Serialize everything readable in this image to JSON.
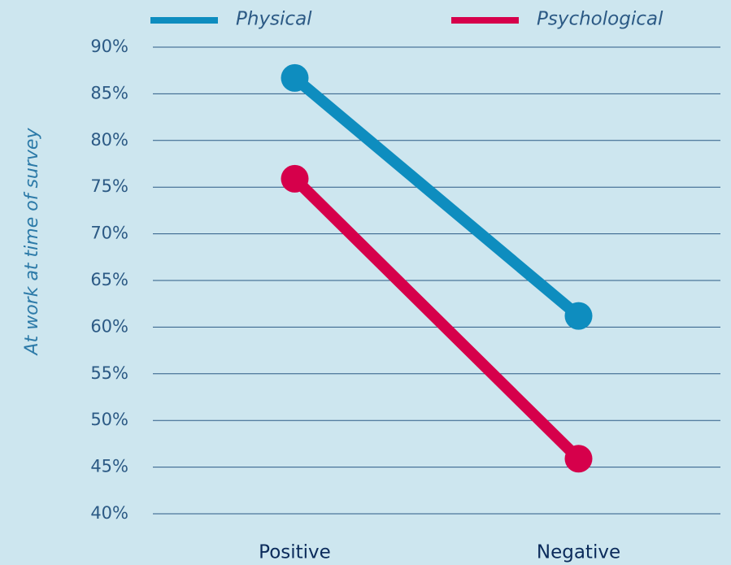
{
  "chart_data": {
    "type": "line",
    "y_label": "At work at time of survey",
    "categories": [
      "Positive",
      "Negative"
    ],
    "series": [
      {
        "name": "Physical",
        "color": "#0e8dbf",
        "values": [
          86.7,
          61.2
        ]
      },
      {
        "name": "Psychological",
        "color": "#d6004b",
        "values": [
          75.9,
          45.9
        ]
      }
    ],
    "ylim": [
      40,
      90
    ],
    "yticks": [
      {
        "value": 40,
        "label": "40%"
      },
      {
        "value": 45,
        "label": "45%"
      },
      {
        "value": 50,
        "label": "50%"
      },
      {
        "value": 55,
        "label": "55%"
      },
      {
        "value": 60,
        "label": "60%"
      },
      {
        "value": 65,
        "label": "65%"
      },
      {
        "value": 70,
        "label": "70%"
      },
      {
        "value": 75,
        "label": "75%"
      },
      {
        "value": 80,
        "label": "80%"
      },
      {
        "value": 85,
        "label": "85%"
      },
      {
        "value": 90,
        "label": "90%"
      }
    ],
    "grid": true,
    "legend": "top"
  }
}
